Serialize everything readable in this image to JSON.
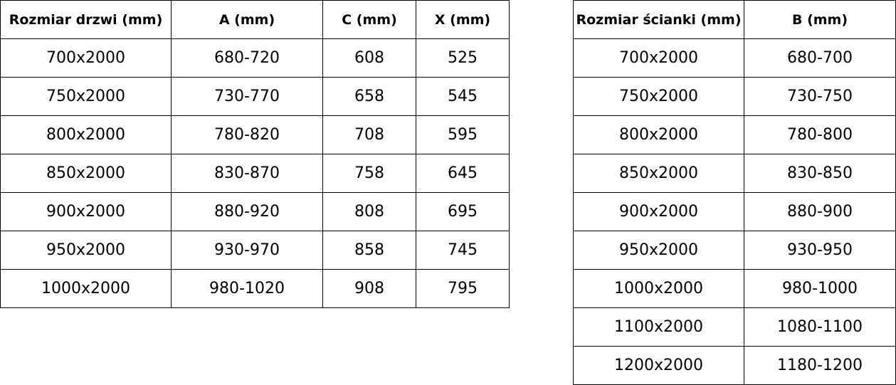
{
  "door_table": {
    "headers": [
      "Rozmiar drzwi (mm)",
      "A (mm)",
      "C (mm)",
      "X (mm)"
    ],
    "rows": [
      [
        "700x2000",
        "680-720",
        "608",
        "525"
      ],
      [
        "750x2000",
        "730-770",
        "658",
        "545"
      ],
      [
        "800x2000",
        "780-820",
        "708",
        "595"
      ],
      [
        "850x2000",
        "830-870",
        "758",
        "645"
      ],
      [
        "900x2000",
        "880-920",
        "808",
        "695"
      ],
      [
        "950x2000",
        "930-970",
        "858",
        "745"
      ],
      [
        "1000x2000",
        "980-1020",
        "908",
        "795"
      ]
    ]
  },
  "wall_table": {
    "headers": [
      "Rozmiar ścianki (mm)",
      "B (mm)"
    ],
    "rows": [
      [
        "700x2000",
        "680-700"
      ],
      [
        "750x2000",
        "730-750"
      ],
      [
        "800x2000",
        "780-800"
      ],
      [
        "850x2000",
        "830-850"
      ],
      [
        "900x2000",
        "880-900"
      ],
      [
        "950x2000",
        "930-950"
      ],
      [
        "1000x2000",
        "980-1000"
      ],
      [
        "1100x2000",
        "1080-1100"
      ],
      [
        "1200x2000",
        "1180-1200"
      ]
    ]
  }
}
